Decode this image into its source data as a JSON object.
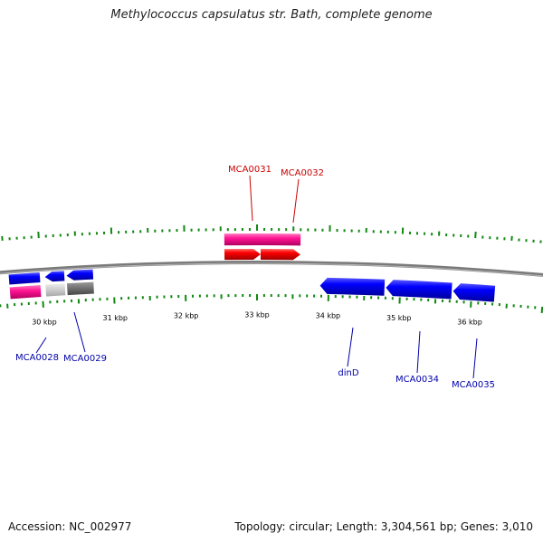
{
  "header": {
    "title": "Methylococcus capsulatus str. Bath, complete genome"
  },
  "footer": {
    "accession": "Accession: NC_002977",
    "summary": "Topology: circular; Length: 3,304,561 bp; Genes: 3,010"
  },
  "colors": {
    "forward_gene": "#ff0000",
    "forward_cds": "#ff1493",
    "reverse_gene": "#0000ff",
    "reverse_cds": "#ff1493",
    "pseudo_light": "#c8c8c8",
    "pseudo_dark": "#666666",
    "tick": "#118811",
    "backbone": "#7a7a7a",
    "forward_label": "#cc0000",
    "reverse_label": "#0000aa"
  },
  "scale": {
    "unit": "kbp",
    "ticks": [
      {
        "kbp": 30,
        "label": "30 kbp"
      },
      {
        "kbp": 31,
        "label": "31 kbp"
      },
      {
        "kbp": 32,
        "label": "32 kbp"
      },
      {
        "kbp": 33,
        "label": "33 kbp"
      },
      {
        "kbp": 34,
        "label": "34 kbp"
      },
      {
        "kbp": 35,
        "label": "35 kbp"
      },
      {
        "kbp": 36,
        "label": "36 kbp"
      }
    ]
  },
  "features": [
    {
      "name": "MCA0028",
      "strand": "reverse",
      "start_kbp": 29.55,
      "end_kbp": 29.98,
      "style": "blue"
    },
    {
      "name": "",
      "strand": "reverse",
      "start_kbp": 30.05,
      "end_kbp": 30.32,
      "style": "blue"
    },
    {
      "name": "MCA0029",
      "strand": "reverse",
      "start_kbp": 30.35,
      "end_kbp": 30.72,
      "style": "blue"
    },
    {
      "name": "MCA0031",
      "strand": "forward",
      "start_kbp": 32.55,
      "end_kbp": 33.05,
      "style": "red"
    },
    {
      "name": "MCA0032",
      "strand": "forward",
      "start_kbp": 33.05,
      "end_kbp": 33.6,
      "style": "red"
    },
    {
      "name": "dinD",
      "strand": "reverse",
      "start_kbp": 33.88,
      "end_kbp": 34.78,
      "style": "blue"
    },
    {
      "name": "MCA0034",
      "strand": "reverse",
      "start_kbp": 34.8,
      "end_kbp": 35.72,
      "style": "blue"
    },
    {
      "name": "MCA0035",
      "strand": "reverse",
      "start_kbp": 35.74,
      "end_kbp": 36.32,
      "style": "blue"
    }
  ],
  "labels": [
    {
      "text": "MCA0028",
      "strand": "reverse",
      "at_kbp": 29.95
    },
    {
      "text": "MCA0029",
      "strand": "reverse",
      "at_kbp": 30.33
    },
    {
      "text": "MCA0031",
      "strand": "forward",
      "at_kbp": 32.83
    },
    {
      "text": "MCA0032",
      "strand": "forward",
      "at_kbp": 33.38
    },
    {
      "text": "dinD",
      "strand": "reverse",
      "at_kbp": 34.15
    },
    {
      "text": "MCA0034",
      "strand": "reverse",
      "at_kbp": 35.06
    },
    {
      "text": "MCA0035",
      "strand": "reverse",
      "at_kbp": 35.83
    }
  ]
}
